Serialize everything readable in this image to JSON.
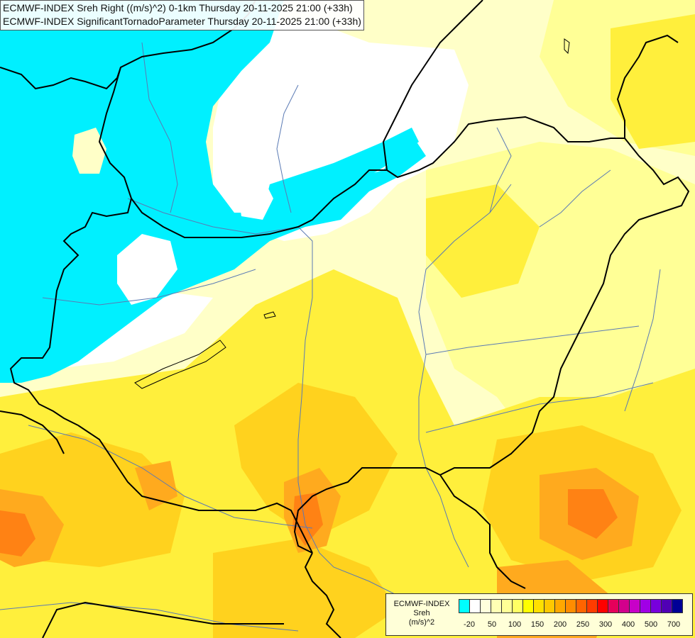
{
  "titles": {
    "line1": "ECMWF-INDEX Sreh Right ((m/s)^2) 0-1km Thursday 20-11-2025 21:00 (+33h)",
    "line2": "ECMWF-INDEX SignificantTornadoParameter Thursday 20-11-2025 21:00 (+33h)"
  },
  "legend": {
    "model": "ECMWF-INDEX",
    "parameter": "Sreh",
    "unit": "(m/s)^2",
    "colors": [
      "#00ffff",
      "#ffffff",
      "#ffffdc",
      "#ffffb4",
      "#ffff96",
      "#ffff64",
      "#ffff00",
      "#ffe000",
      "#ffc800",
      "#ffa800",
      "#ff8c00",
      "#ff6400",
      "#ff3c00",
      "#ff0000",
      "#e6005a",
      "#d2008c",
      "#c800c8",
      "#a000e6",
      "#7800dc",
      "#5000b4",
      "#000096"
    ],
    "ticks": [
      "-20",
      "50",
      "100",
      "150",
      "200",
      "250",
      "300",
      "400",
      "500",
      "700"
    ]
  },
  "palette": {
    "cyan": "#00f0ff",
    "white": "#ffffff",
    "pale": "#ffffc8",
    "light": "#ffff96",
    "yellow": "#ffef3c",
    "gold": "#ffd21e",
    "orange": "#ffaa1e",
    "dark_orange": "#ff8214",
    "border": "#000000",
    "river": "#5a7ab4"
  }
}
